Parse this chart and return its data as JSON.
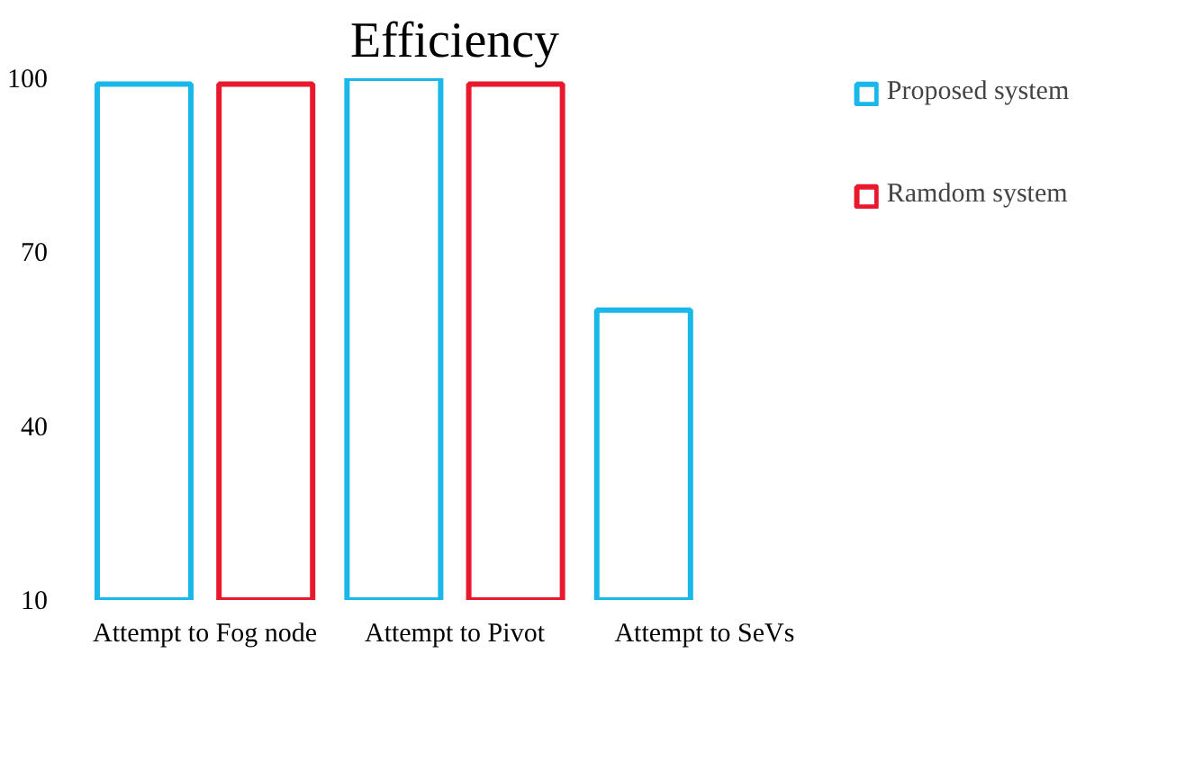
{
  "chart_data": {
    "type": "bar",
    "title": "Efficiency",
    "categories": [
      "Attempt to Fog node",
      "Attempt to Pivot",
      "Attempt to SeVs"
    ],
    "series": [
      {
        "name": "Proposed system",
        "color": "#1ab8e8",
        "values": [
          99,
          100,
          60
        ]
      },
      {
        "name": "Ramdom system",
        "color": "#e8192c",
        "values": [
          99,
          99,
          null
        ]
      }
    ],
    "ylim": [
      10,
      100
    ],
    "yticks": [
      10,
      40,
      70,
      100
    ],
    "grid": false,
    "legend": "top right"
  }
}
